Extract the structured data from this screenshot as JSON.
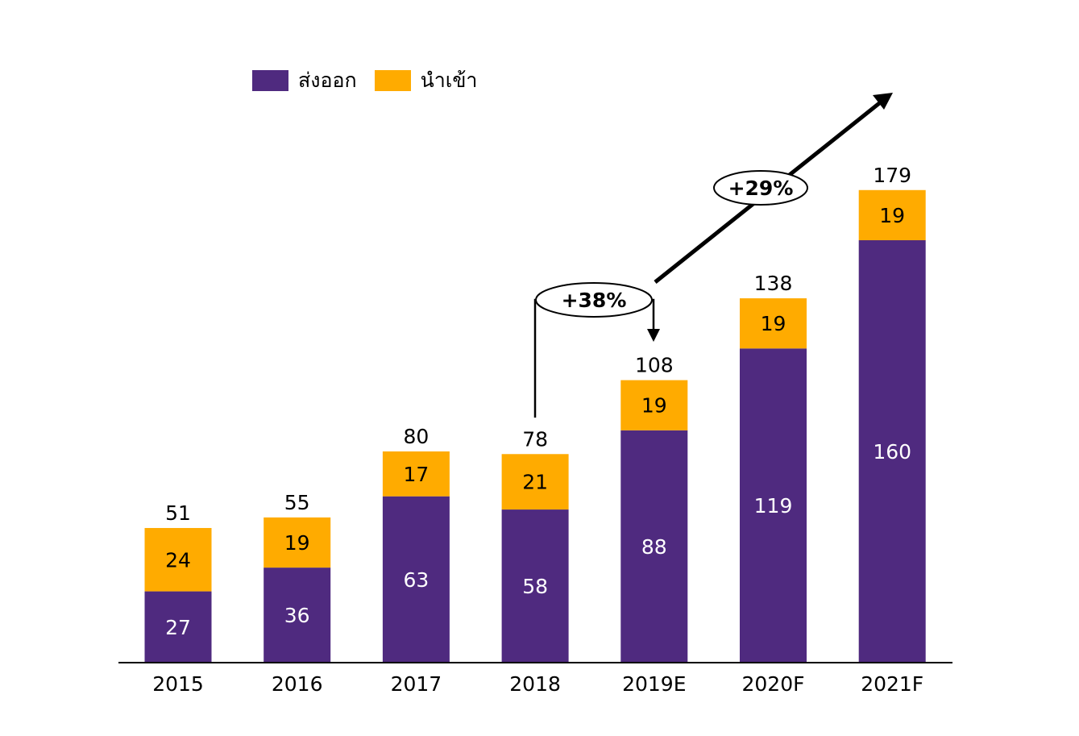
{
  "chart_data": {
    "type": "bar",
    "stacked": true,
    "categories": [
      "2015",
      "2016",
      "2017",
      "2018",
      "2019E",
      "2020F",
      "2021F"
    ],
    "series": [
      {
        "name": "ส่งออก",
        "color": "#4f2a7f",
        "values": [
          27,
          36,
          63,
          58,
          88,
          119,
          160
        ]
      },
      {
        "name": "นำเข้า",
        "color": "#ffab00",
        "values": [
          24,
          19,
          17,
          21,
          19,
          19,
          19
        ]
      }
    ],
    "totals": [
      51,
      55,
      80,
      78,
      108,
      138,
      179
    ],
    "annotations": [
      {
        "text": "+38%",
        "from": "2018",
        "to": "2019E"
      },
      {
        "text": "+29%",
        "from": "2019E",
        "to": "2021F"
      }
    ],
    "ylim": [
      0,
      179
    ],
    "legend_position": "top-left",
    "grid": false
  }
}
